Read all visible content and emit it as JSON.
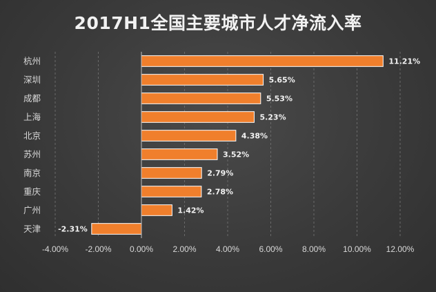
{
  "chart_data": {
    "type": "bar",
    "orientation": "horizontal",
    "title": "2017H1全国主要城市人才净流入率",
    "categories": [
      "杭州",
      "深圳",
      "成都",
      "上海",
      "北京",
      "苏州",
      "南京",
      "重庆",
      "广州",
      "天津"
    ],
    "values": [
      11.21,
      5.65,
      5.53,
      5.23,
      4.38,
      3.52,
      2.79,
      2.78,
      1.42,
      -2.31
    ],
    "value_labels": [
      "11.21%",
      "5.65%",
      "5.53%",
      "5.23%",
      "4.38%",
      "3.52%",
      "2.79%",
      "2.78%",
      "1.42%",
      "-2.31%"
    ],
    "xlim": [
      -4,
      12
    ],
    "x_ticks": [
      -4,
      -2,
      0,
      2,
      4,
      6,
      8,
      10,
      12
    ],
    "x_tick_labels": [
      "-4.00%",
      "-2.00%",
      "0.00%",
      "2.00%",
      "4.00%",
      "6.00%",
      "8.00%",
      "10.00%",
      "12.00%"
    ],
    "xlabel": "",
    "ylabel": "",
    "grid": true,
    "legend": false,
    "bar_color": "#f07f2c",
    "background_color": "#3b3b3b"
  }
}
